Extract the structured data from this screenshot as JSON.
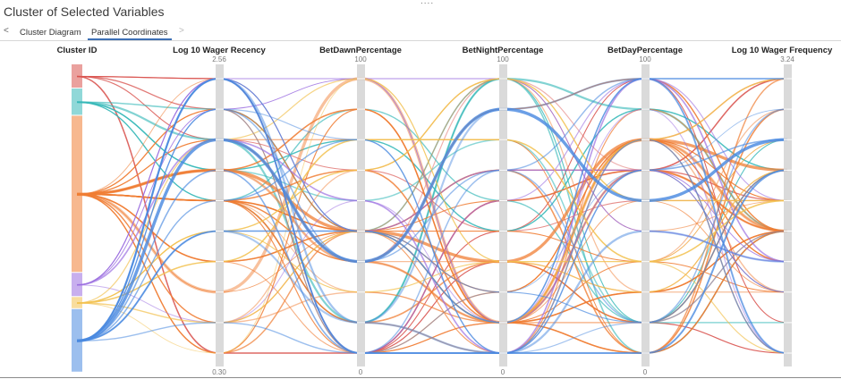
{
  "header": {
    "title": "Cluster of Selected Variables"
  },
  "tabs": [
    {
      "label": "Cluster Diagram",
      "active": false
    },
    {
      "label": "Parallel Coordinates",
      "active": true
    }
  ],
  "nav": {
    "prev": "<",
    "next": ">"
  },
  "chart_data": {
    "type": "parallel-coordinates",
    "axes": [
      {
        "name": "Cluster ID",
        "min_label": "",
        "max_label": ""
      },
      {
        "name": "Log 10 Wager Recency",
        "min_label": "0.30",
        "max_label": "2.56",
        "min": 0.3,
        "max": 2.56
      },
      {
        "name": "BetDawnPercentage",
        "min_label": "0",
        "max_label": "100",
        "min": 0,
        "max": 100
      },
      {
        "name": "BetNightPercentage",
        "min_label": "0",
        "max_label": "100",
        "min": 0,
        "max": 100
      },
      {
        "name": "BetDayPercentage",
        "min_label": "0",
        "max_label": "100",
        "min": 0,
        "max": 100
      },
      {
        "name": "Log 10 Wager Frequency",
        "min_label": "",
        "max_label": "3.24",
        "min": 0.3,
        "max": 3.24
      }
    ],
    "bins_per_axis": 10,
    "clusters": [
      {
        "id": "1",
        "color": "#d9534f",
        "share": 0.08
      },
      {
        "id": "2",
        "color": "#35b8b8",
        "share": 0.09
      },
      {
        "id": "3",
        "color": "#f07d33",
        "share": 0.52
      },
      {
        "id": "4",
        "color": "#9b6ee0",
        "share": 0.08
      },
      {
        "id": "5",
        "color": "#f2c14e",
        "share": 0.04
      },
      {
        "id": "6",
        "color": "#4a8ae0",
        "share": 0.21
      }
    ],
    "grid": false,
    "legend": "left-axis"
  }
}
